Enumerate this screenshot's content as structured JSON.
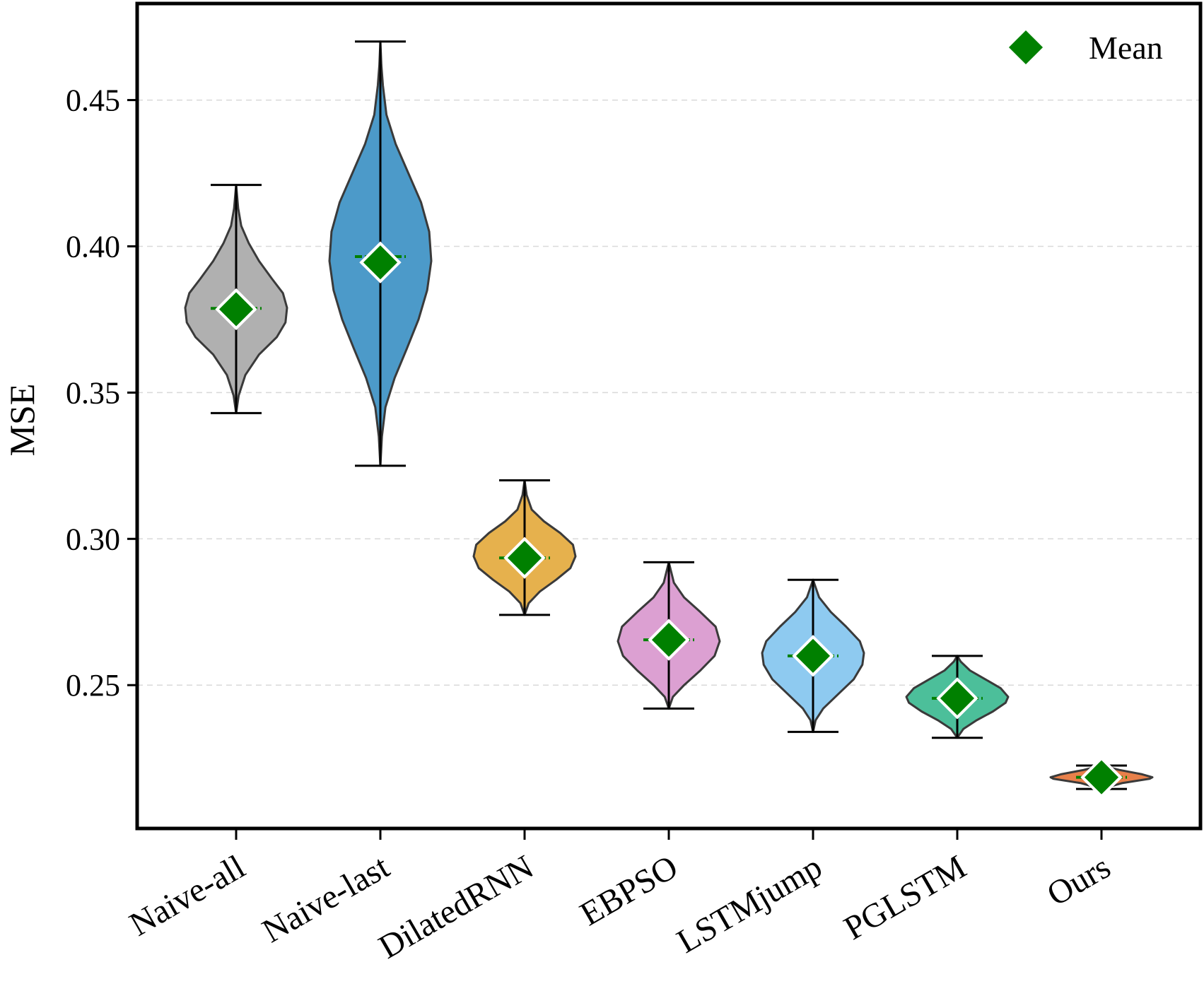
{
  "chart_data": {
    "type": "violin",
    "title": "",
    "xlabel": "",
    "ylabel": "MSE",
    "ylim": [
      0.201,
      0.483
    ],
    "yticks": [
      0.25,
      0.3,
      0.35,
      0.4,
      0.45
    ],
    "ytick_labels": [
      "0.25",
      "0.30",
      "0.35",
      "0.40",
      "0.45"
    ],
    "grid": "y-dashed",
    "legend": {
      "position": "top-right",
      "entries": [
        {
          "label": "Mean",
          "marker": "diamond",
          "color": "#008000"
        }
      ]
    },
    "categories": [
      "Naive-all",
      "Naive-last",
      "DilatedRNN",
      "EBPSO",
      "LSTMjump",
      "PGLSTM",
      "Ours"
    ],
    "series": [
      {
        "name": "Naive-all",
        "min": 0.343,
        "max": 0.421,
        "median": 0.3788,
        "mean": 0.3785,
        "color": "#b0b0b0",
        "profile": [
          [
            0.343,
            0.0
          ],
          [
            0.349,
            0.05
          ],
          [
            0.356,
            0.18
          ],
          [
            0.363,
            0.45
          ],
          [
            0.369,
            0.8
          ],
          [
            0.374,
            0.97
          ],
          [
            0.379,
            1.0
          ],
          [
            0.384,
            0.92
          ],
          [
            0.389,
            0.7
          ],
          [
            0.395,
            0.45
          ],
          [
            0.401,
            0.25
          ],
          [
            0.407,
            0.1
          ],
          [
            0.413,
            0.04
          ],
          [
            0.421,
            0.0
          ]
        ]
      },
      {
        "name": "Naive-last",
        "min": 0.325,
        "max": 0.47,
        "median": 0.3965,
        "mean": 0.3945,
        "color": "#4c9ac9",
        "profile": [
          [
            0.325,
            0.0
          ],
          [
            0.335,
            0.03
          ],
          [
            0.345,
            0.1
          ],
          [
            0.355,
            0.28
          ],
          [
            0.365,
            0.52
          ],
          [
            0.375,
            0.75
          ],
          [
            0.385,
            0.92
          ],
          [
            0.395,
            1.0
          ],
          [
            0.405,
            0.96
          ],
          [
            0.415,
            0.8
          ],
          [
            0.425,
            0.55
          ],
          [
            0.435,
            0.3
          ],
          [
            0.445,
            0.12
          ],
          [
            0.455,
            0.05
          ],
          [
            0.462,
            0.02
          ],
          [
            0.47,
            0.0
          ]
        ]
      },
      {
        "name": "DilatedRNN",
        "min": 0.274,
        "max": 0.32,
        "median": 0.2935,
        "mean": 0.2935,
        "color": "#e6b14d",
        "profile": [
          [
            0.274,
            0.0
          ],
          [
            0.278,
            0.08
          ],
          [
            0.282,
            0.3
          ],
          [
            0.286,
            0.62
          ],
          [
            0.29,
            0.9
          ],
          [
            0.294,
            1.0
          ],
          [
            0.298,
            0.95
          ],
          [
            0.302,
            0.7
          ],
          [
            0.306,
            0.38
          ],
          [
            0.31,
            0.14
          ],
          [
            0.315,
            0.04
          ],
          [
            0.32,
            0.0
          ]
        ]
      },
      {
        "name": "EBPSO",
        "min": 0.242,
        "max": 0.292,
        "median": 0.2655,
        "mean": 0.2655,
        "color": "#dca0d2",
        "profile": [
          [
            0.242,
            0.0
          ],
          [
            0.246,
            0.08
          ],
          [
            0.25,
            0.3
          ],
          [
            0.255,
            0.62
          ],
          [
            0.26,
            0.9
          ],
          [
            0.265,
            1.0
          ],
          [
            0.27,
            0.92
          ],
          [
            0.275,
            0.62
          ],
          [
            0.28,
            0.3
          ],
          [
            0.285,
            0.1
          ],
          [
            0.292,
            0.0
          ]
        ]
      },
      {
        "name": "LSTMjump",
        "min": 0.234,
        "max": 0.286,
        "median": 0.26,
        "mean": 0.26,
        "color": "#8ecaf0",
        "profile": [
          [
            0.234,
            0.0
          ],
          [
            0.238,
            0.05
          ],
          [
            0.242,
            0.2
          ],
          [
            0.247,
            0.5
          ],
          [
            0.252,
            0.8
          ],
          [
            0.257,
            0.97
          ],
          [
            0.261,
            1.0
          ],
          [
            0.265,
            0.92
          ],
          [
            0.27,
            0.65
          ],
          [
            0.275,
            0.35
          ],
          [
            0.28,
            0.12
          ],
          [
            0.286,
            0.0
          ]
        ]
      },
      {
        "name": "PGLSTM",
        "min": 0.232,
        "max": 0.26,
        "median": 0.2455,
        "mean": 0.2455,
        "color": "#4cbf9a",
        "profile": [
          [
            0.232,
            0.0
          ],
          [
            0.235,
            0.12
          ],
          [
            0.238,
            0.38
          ],
          [
            0.241,
            0.7
          ],
          [
            0.244,
            0.95
          ],
          [
            0.246,
            1.0
          ],
          [
            0.249,
            0.85
          ],
          [
            0.252,
            0.55
          ],
          [
            0.255,
            0.25
          ],
          [
            0.258,
            0.07
          ],
          [
            0.26,
            0.0
          ]
        ]
      },
      {
        "name": "Ours",
        "min": 0.2145,
        "max": 0.2225,
        "median": 0.2185,
        "mean": 0.2185,
        "color": "#e8804a",
        "profile": [
          [
            0.2145,
            0.0
          ],
          [
            0.2165,
            0.4
          ],
          [
            0.218,
            0.95
          ],
          [
            0.2185,
            1.0
          ],
          [
            0.2195,
            0.8
          ],
          [
            0.221,
            0.35
          ],
          [
            0.2225,
            0.0
          ]
        ]
      }
    ]
  }
}
